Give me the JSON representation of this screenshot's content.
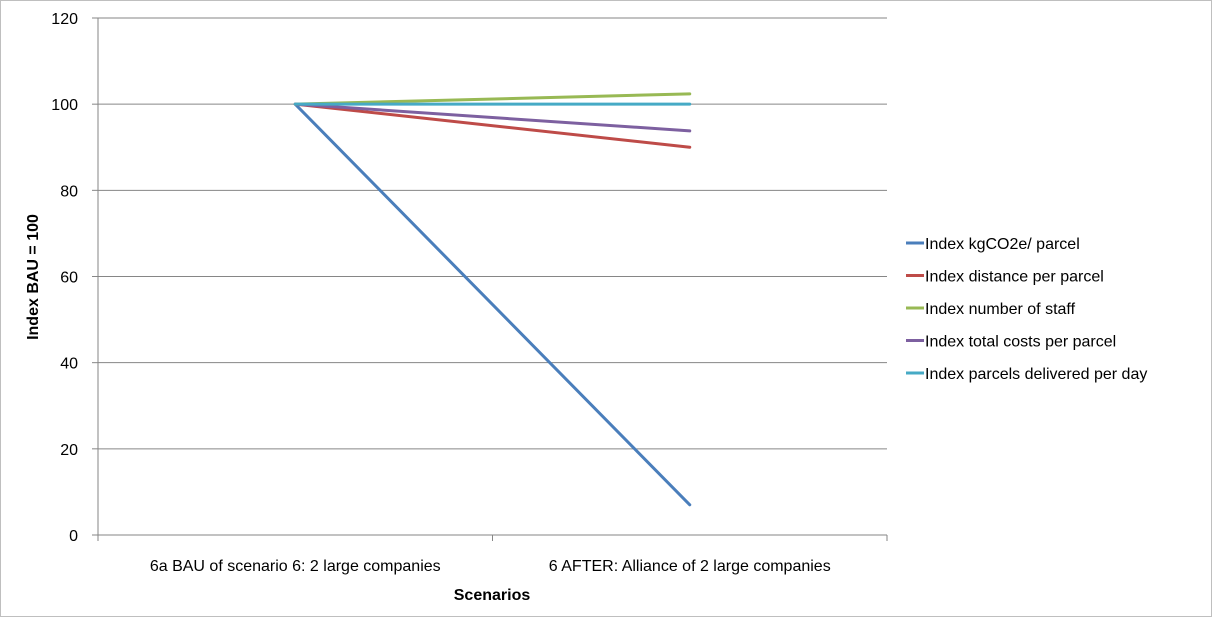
{
  "chart_data": {
    "type": "line",
    "title": "",
    "xlabel": "Scenarios",
    "ylabel": "Index BAU = 100",
    "categories": [
      "6a BAU of scenario 6: 2 large companies",
      "6 AFTER: Alliance of 2 large companies"
    ],
    "ylim": [
      0,
      120
    ],
    "yticks": [
      "0",
      "20",
      "40",
      "60",
      "80",
      "100",
      "120"
    ],
    "grid": true,
    "legend_position": "right",
    "series": [
      {
        "name": "Index kgCO2e/ parcel",
        "color": "#4a7ebb",
        "values": [
          100,
          7
        ]
      },
      {
        "name": "Index distance per parcel",
        "color": "#be4b48",
        "values": [
          100,
          90
        ]
      },
      {
        "name": "Index number of staff",
        "color": "#98b954",
        "values": [
          100,
          102.4
        ]
      },
      {
        "name": "Index total costs per parcel",
        "color": "#7d60a0",
        "values": [
          100,
          93.8
        ]
      },
      {
        "name": "Index parcels delivered per day",
        "color": "#46aac5",
        "values": [
          100,
          100
        ]
      }
    ]
  }
}
